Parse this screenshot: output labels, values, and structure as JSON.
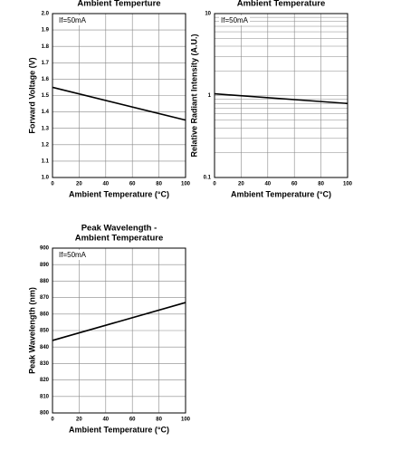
{
  "chart_data": [
    {
      "type": "line",
      "title": [
        "Ambient Temperture"
      ],
      "annotation": "If=50mA",
      "x_label": "Ambient Temperature (°C)",
      "y_label": "Forward Voltage (V)",
      "xlim": [
        0,
        100
      ],
      "xticks": [
        0,
        20,
        40,
        60,
        80,
        100
      ],
      "ylim": [
        1.0,
        2.0
      ],
      "yticks": [
        {
          "value": 1.0,
          "label": "1.0"
        },
        1.1,
        1.2,
        1.3,
        1.4,
        1.5,
        1.6,
        1.7,
        1.8,
        1.9,
        {
          "value": 2.0,
          "label": "2.0"
        }
      ],
      "grid": true,
      "series": [
        {
          "color": "#000000",
          "x": [
            0,
            100
          ],
          "values": [
            1.55,
            1.35
          ]
        }
      ]
    },
    {
      "type": "line",
      "title": [
        "Ambient Temperature"
      ],
      "annotation": "If=50mA",
      "x_label": "Ambient Temperature (°C)",
      "y_label": "Relative Radiant Intensity (A.U.)",
      "xlim": [
        0,
        100
      ],
      "xticks": [
        0,
        20,
        40,
        60,
        80,
        100
      ],
      "ylim": [
        0.1,
        10
      ],
      "yticks": [
        0.1,
        1,
        10
      ],
      "yscale": "log",
      "grid": true,
      "series": [
        {
          "color": "#000000",
          "x": [
            0,
            100
          ],
          "values": [
            1.05,
            0.8
          ]
        }
      ]
    },
    {
      "type": "line",
      "title": [
        "Peak Wavelength -",
        "Ambient Temperature"
      ],
      "annotation": "If=50mA",
      "x_label": "Ambient Temperature (°C)",
      "y_label": "Peak Wavelength (nm)",
      "xlim": [
        0,
        100
      ],
      "xticks": [
        0,
        20,
        40,
        60,
        80,
        100
      ],
      "ylim": [
        800,
        900
      ],
      "yticks": [
        800,
        810,
        820,
        830,
        840,
        850,
        860,
        870,
        880,
        890,
        900
      ],
      "grid": true,
      "series": [
        {
          "color": "#000000",
          "x": [
            0,
            100
          ],
          "values": [
            844,
            867
          ]
        }
      ]
    }
  ]
}
